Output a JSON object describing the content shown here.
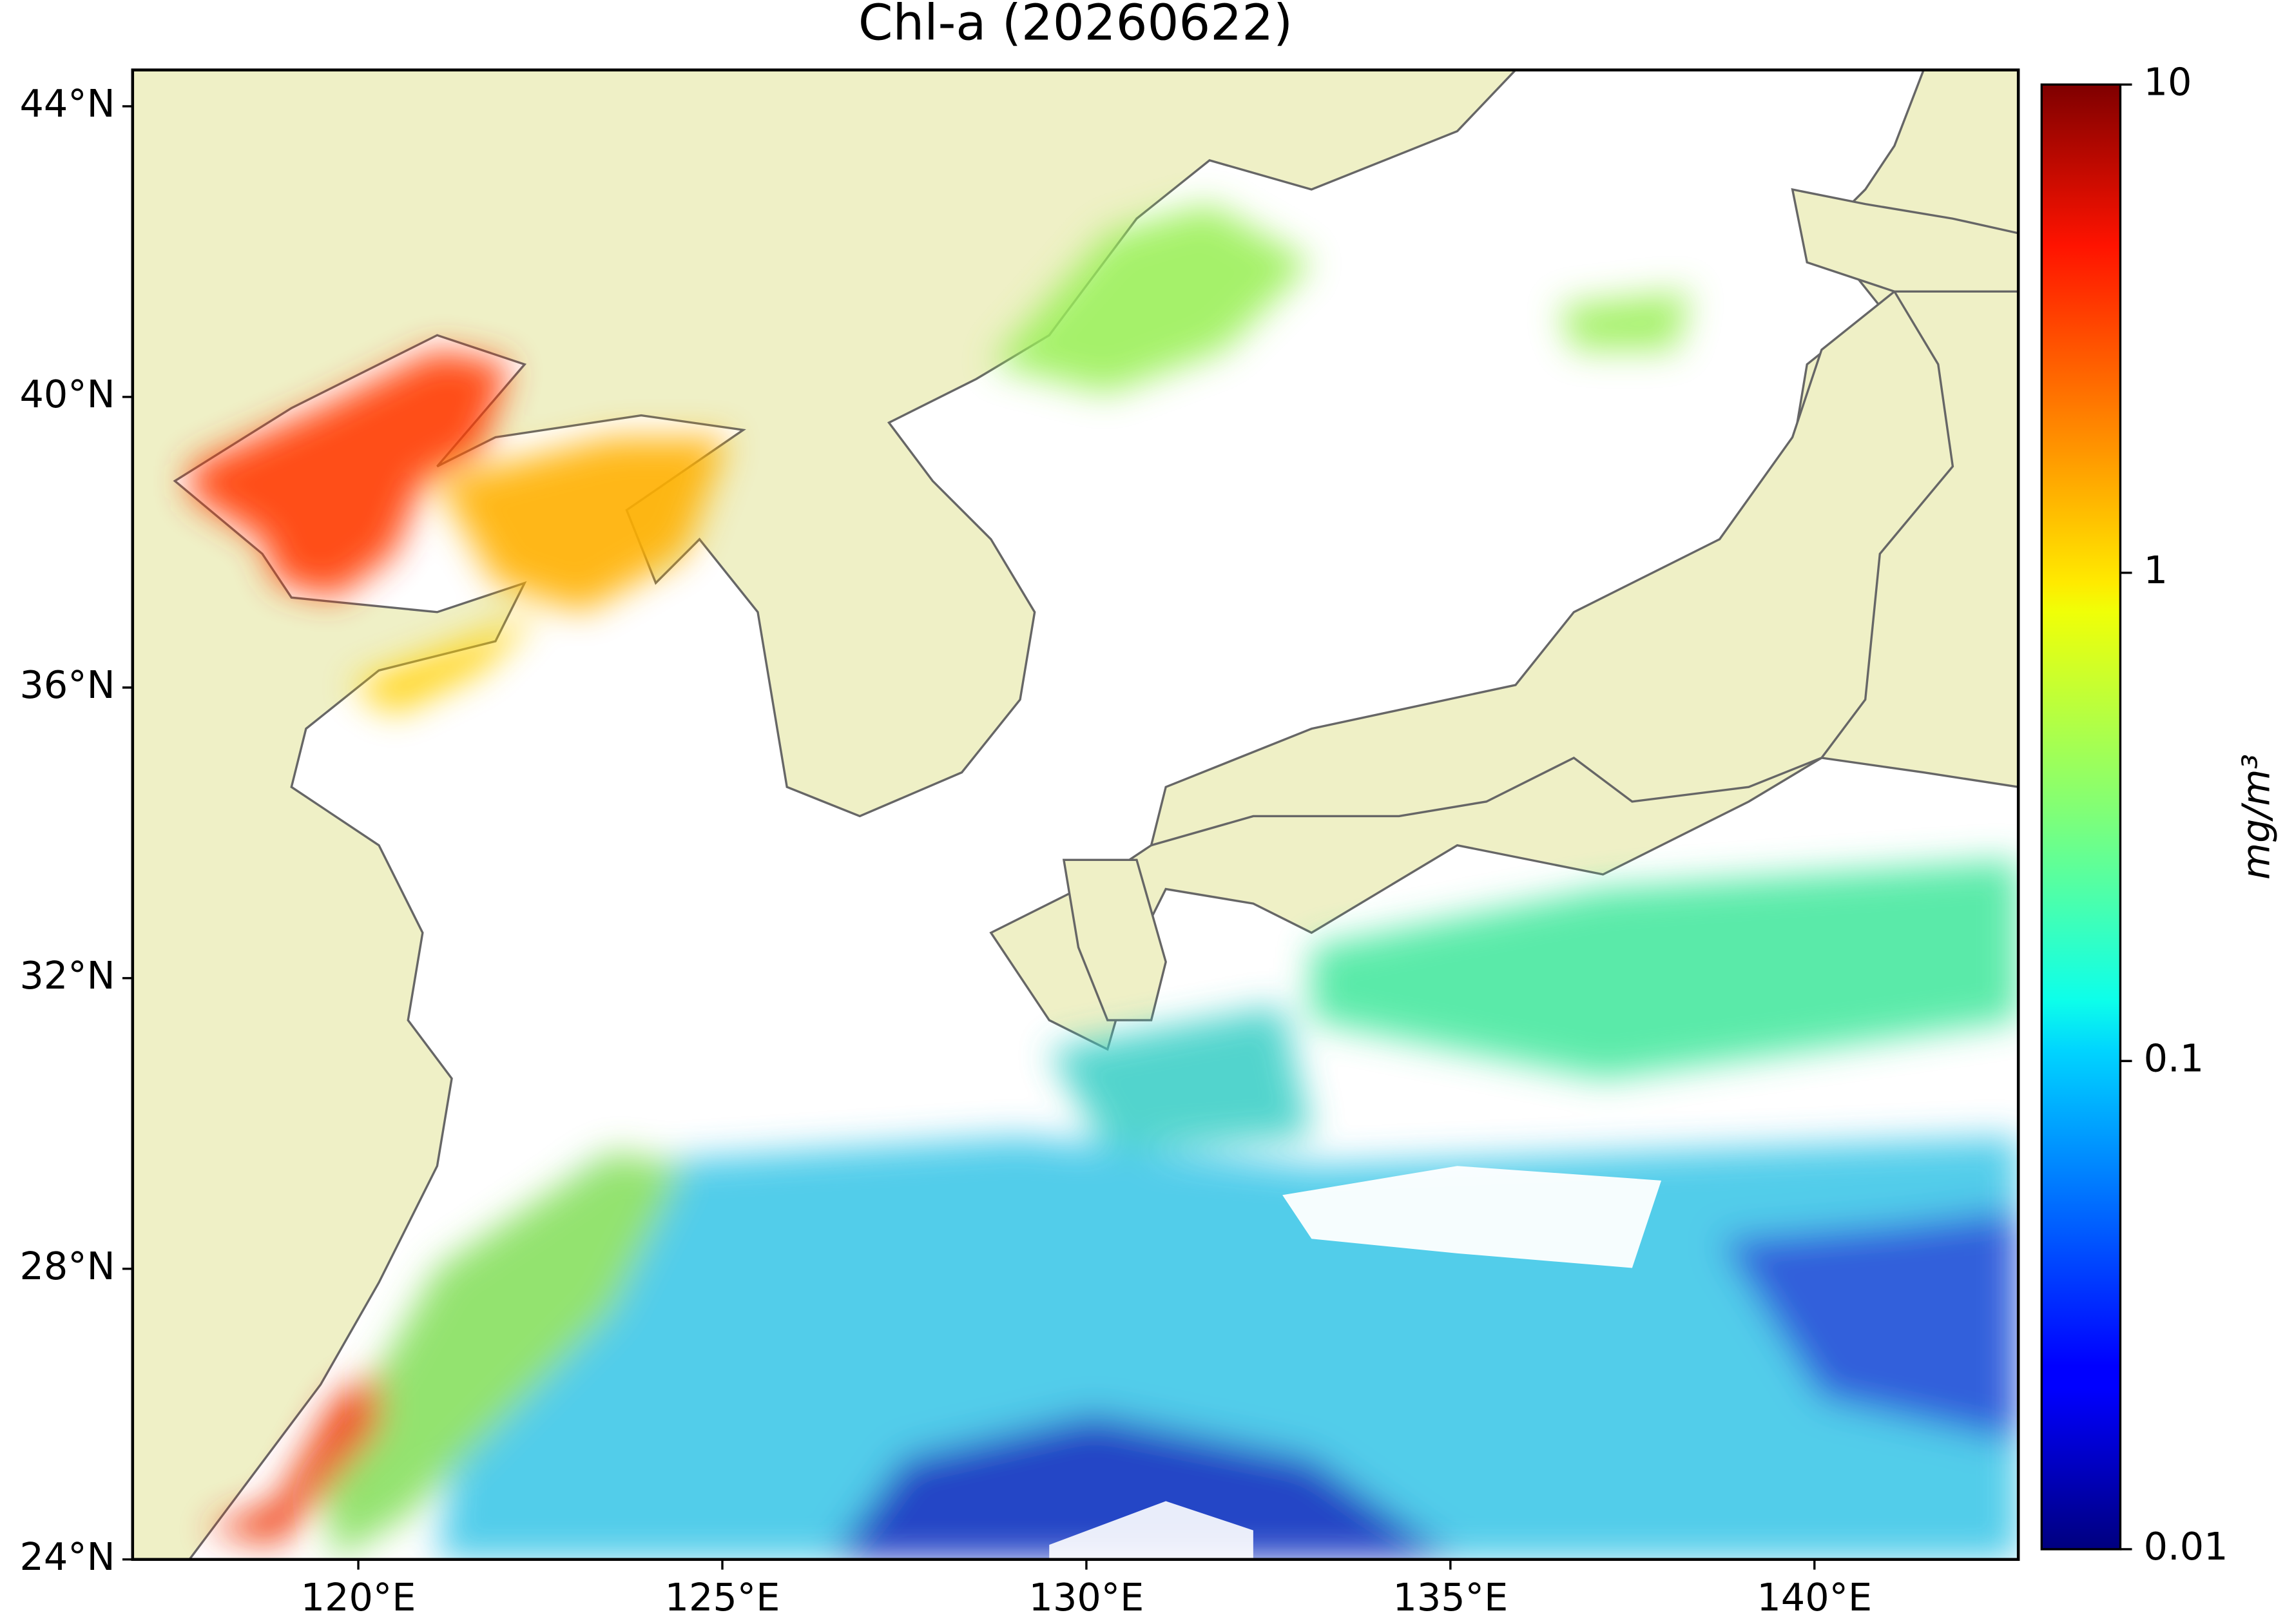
{
  "chart_data": {
    "type": "map",
    "title": "Chl-a (20260622)",
    "xlim": [
      116.9,
      142.8
    ],
    "ylim": [
      24,
      44.5
    ],
    "xticks": [
      {
        "value": 120,
        "label": "120°E"
      },
      {
        "value": 125,
        "label": "125°E"
      },
      {
        "value": 130,
        "label": "130°E"
      },
      {
        "value": 135,
        "label": "135°E"
      },
      {
        "value": 140,
        "label": "140°E"
      }
    ],
    "yticks": [
      {
        "value": 24,
        "label": "24°N"
      },
      {
        "value": 28,
        "label": "28°N"
      },
      {
        "value": 32,
        "label": "32°N"
      },
      {
        "value": 36,
        "label": "36°N"
      },
      {
        "value": 40,
        "label": "40°N"
      },
      {
        "value": 44,
        "label": "44°N"
      }
    ],
    "colorbar": {
      "label": "mg/m³",
      "lim": [
        0.01,
        10
      ],
      "ticks": [
        0.01,
        0.1,
        1,
        10
      ],
      "log": true,
      "colormap": "jet"
    }
  }
}
